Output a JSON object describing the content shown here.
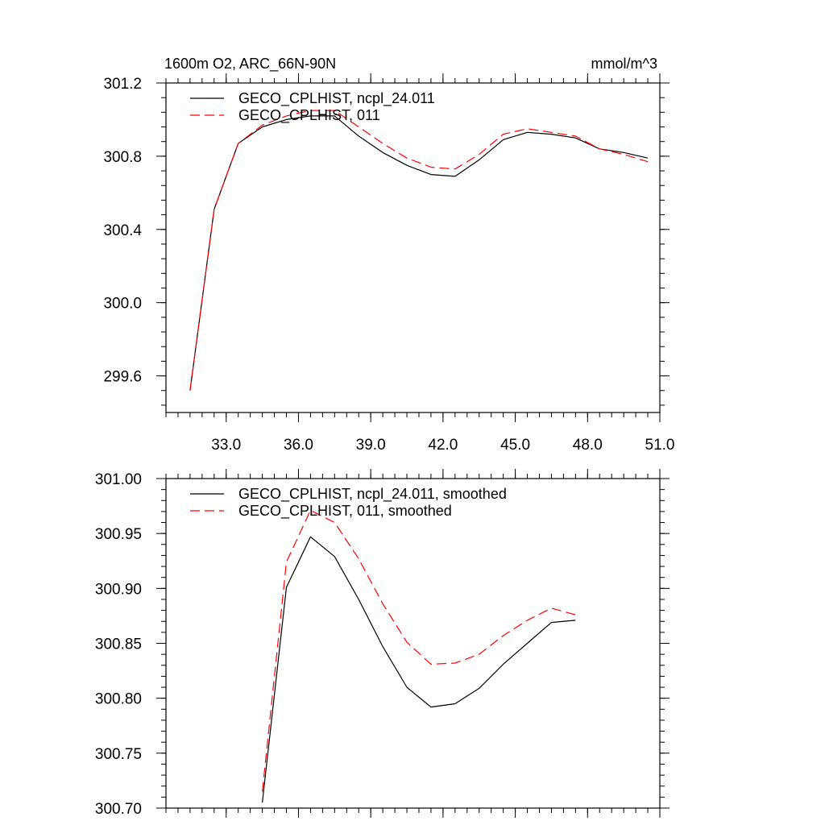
{
  "chart_data": [
    {
      "type": "line",
      "title": "1600m O2, ARC_66N-90N",
      "units": "mmol/m^3",
      "xlim": [
        30.5,
        51.0
      ],
      "ylim": [
        299.4,
        301.2
      ],
      "x_major_ticks": [
        33.0,
        36.0,
        39.0,
        42.0,
        45.0,
        48.0,
        51.0
      ],
      "x_tick_labels": [
        "33.0",
        "36.0",
        "39.0",
        "42.0",
        "45.0",
        "48.0",
        "51.0"
      ],
      "x_minor_step": 0.5,
      "y_major_ticks": [
        299.6,
        300.0,
        300.4,
        300.8,
        301.2
      ],
      "y_tick_labels": [
        "299.6",
        "300.0",
        "300.4",
        "300.8",
        "301.2"
      ],
      "y_minor_step": 0.08,
      "legend_position": "top-left",
      "series": [
        {
          "name": "GECO_CPLHIST, ncpl_24.011",
          "color": "#000000",
          "dash": "solid",
          "x": [
            31.5,
            32.5,
            33.5,
            34.5,
            35.5,
            36.5,
            37.5,
            38.5,
            39.5,
            40.5,
            41.5,
            42.5,
            43.5,
            44.5,
            45.5,
            46.5,
            47.5,
            48.5,
            49.5,
            50.5
          ],
          "values": [
            299.52,
            300.51,
            300.87,
            300.96,
            301.0,
            301.02,
            301.02,
            300.91,
            300.82,
            300.75,
            300.7,
            300.69,
            300.78,
            300.89,
            300.93,
            300.92,
            300.9,
            300.84,
            300.82,
            300.79
          ]
        },
        {
          "name": "GECO_CPLHIST, 011",
          "color": "#ff0000",
          "dash": "dashed",
          "x": [
            31.5,
            32.5,
            33.5,
            34.5,
            35.5,
            36.5,
            37.5,
            38.5,
            39.5,
            40.5,
            41.5,
            42.5,
            43.5,
            44.5,
            45.5,
            46.5,
            47.5,
            48.5,
            49.5,
            50.5
          ],
          "values": [
            299.52,
            300.51,
            300.87,
            300.97,
            301.02,
            301.05,
            301.05,
            300.96,
            300.87,
            300.79,
            300.74,
            300.73,
            300.81,
            300.92,
            300.95,
            300.93,
            300.91,
            300.84,
            300.81,
            300.77
          ]
        }
      ]
    },
    {
      "type": "line",
      "xlim": [
        30.5,
        51.0
      ],
      "ylim": [
        300.7,
        301.0
      ],
      "x_major_ticks": [
        33.0,
        36.0,
        39.0,
        42.0,
        45.0,
        48.0,
        51.0
      ],
      "x_minor_step": 0.5,
      "y_major_ticks": [
        300.7,
        300.75,
        300.8,
        300.85,
        300.9,
        300.95,
        301.0
      ],
      "y_tick_labels": [
        "300.70",
        "300.75",
        "300.80",
        "300.85",
        "300.90",
        "300.95",
        "301.00"
      ],
      "y_minor_step": 0.01,
      "legend_position": "top-left",
      "series": [
        {
          "name": "GECO_CPLHIST, ncpl_24.011, smoothed",
          "color": "#000000",
          "dash": "solid",
          "x": [
            34.5,
            35.5,
            36.5,
            37.5,
            38.5,
            39.5,
            40.5,
            41.5,
            42.5,
            43.5,
            44.5,
            45.5,
            46.5,
            47.5
          ],
          "values": [
            300.705,
            300.901,
            300.947,
            300.929,
            300.89,
            300.847,
            300.81,
            300.792,
            300.795,
            300.809,
            300.831,
            300.85,
            300.869,
            300.871
          ]
        },
        {
          "name": "GECO_CPLHIST, 011, smoothed",
          "color": "#ff0000",
          "dash": "dashed",
          "x": [
            34.5,
            35.5,
            36.5,
            37.5,
            38.5,
            39.5,
            40.5,
            41.5,
            42.5,
            43.5,
            44.5,
            45.5,
            46.5,
            47.5
          ],
          "values": [
            300.715,
            300.924,
            300.971,
            300.96,
            300.927,
            300.886,
            300.851,
            300.831,
            300.832,
            300.84,
            300.857,
            300.871,
            300.882,
            300.876
          ]
        }
      ]
    }
  ]
}
